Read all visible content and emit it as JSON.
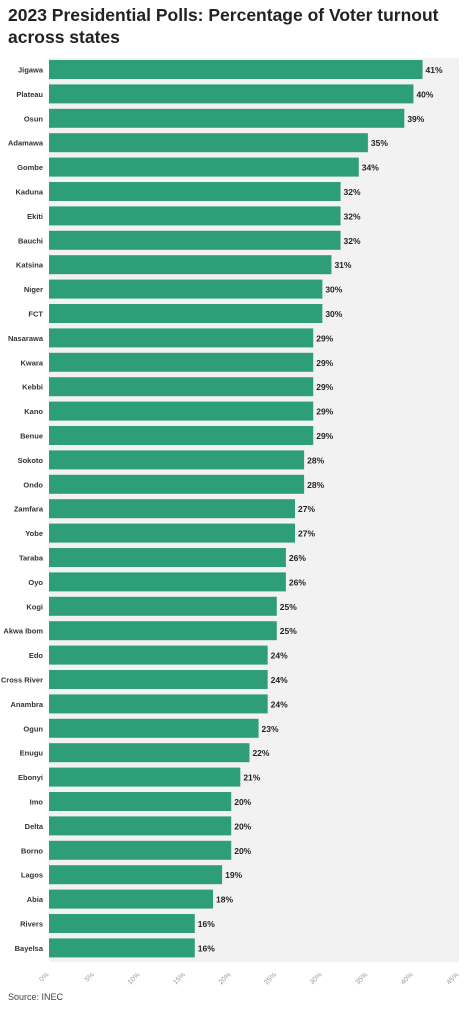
{
  "chart_data": {
    "type": "bar",
    "orientation": "horizontal",
    "title": "2023 Presidential Polls: Percentage of Voter turnout across states",
    "categories": [
      "Jigawa",
      "Plateau",
      "Osun",
      "Adamawa",
      "Gombe",
      "Kaduna",
      "Ekiti",
      "Bauchi",
      "Katsina",
      "Niger",
      "FCT",
      "Nasarawa",
      "Kwara",
      "Kebbi",
      "Kano",
      "Benue",
      "Sokoto",
      "Ondo",
      "Zamfara",
      "Yobe",
      "Taraba",
      "Oyo",
      "Kogi",
      "Akwa Ibom",
      "Edo",
      "Cross River",
      "Anambra",
      "Ogun",
      "Enugu",
      "Ebonyi",
      "Imo",
      "Delta",
      "Borno",
      "Lagos",
      "Abia",
      "Rivers",
      "Bayelsa"
    ],
    "values": [
      41,
      40,
      39,
      35,
      34,
      32,
      32,
      32,
      31,
      30,
      30,
      29,
      29,
      29,
      29,
      29,
      28,
      28,
      27,
      27,
      26,
      26,
      25,
      25,
      24,
      24,
      24,
      23,
      22,
      21,
      20,
      20,
      20,
      19,
      18,
      16,
      16
    ],
    "value_labels": [
      "41%",
      "40%",
      "39%",
      "35%",
      "34%",
      "32%",
      "32%",
      "32%",
      "31%",
      "30%",
      "30%",
      "29%",
      "29%",
      "29%",
      "29%",
      "29%",
      "28%",
      "28%",
      "27%",
      "27%",
      "26%",
      "26%",
      "25%",
      "25%",
      "24%",
      "24%",
      "24%",
      "23%",
      "22%",
      "21%",
      "20%",
      "20%",
      "20%",
      "19%",
      "18%",
      "16%",
      "16%"
    ],
    "x_ticks": [
      "0%",
      "5%",
      "10%",
      "15%",
      "20%",
      "25%",
      "30%",
      "35%",
      "40%",
      "45%"
    ],
    "xlim": [
      0,
      45
    ],
    "bar_color": "#2e9e78",
    "background_color": "#f2f2f2",
    "source": "Source: INEC"
  }
}
